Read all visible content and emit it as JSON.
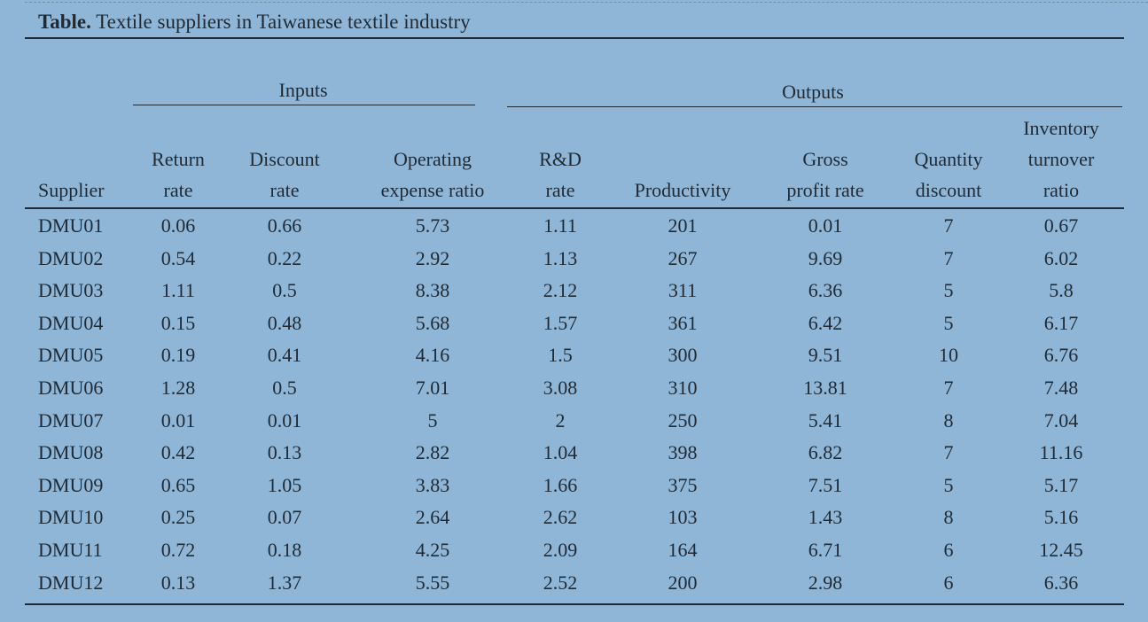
{
  "caption": {
    "label": "Table.",
    "title": "Textile suppliers in Taiwanese textile industry"
  },
  "groups": {
    "inputs": "Inputs",
    "outputs": "Outputs"
  },
  "headers": [
    [
      "Supplier"
    ],
    [
      "Return",
      "rate"
    ],
    [
      "Discount",
      "rate"
    ],
    [
      "Operating",
      "expense ratio"
    ],
    [
      "R&D",
      "rate"
    ],
    [
      "Productivity"
    ],
    [
      "Gross",
      "profit rate"
    ],
    [
      "Quantity",
      "discount"
    ],
    [
      "Inventory",
      "turnover",
      "ratio"
    ]
  ],
  "rows": [
    [
      "DMU01",
      "0.06",
      "0.66",
      "5.73",
      "1.11",
      "201",
      "0.01",
      "7",
      "0.67"
    ],
    [
      "DMU02",
      "0.54",
      "0.22",
      "2.92",
      "1.13",
      "267",
      "9.69",
      "7",
      "6.02"
    ],
    [
      "DMU03",
      "1.11",
      "0.5",
      "8.38",
      "2.12",
      "311",
      "6.36",
      "5",
      "5.8"
    ],
    [
      "DMU04",
      "0.15",
      "0.48",
      "5.68",
      "1.57",
      "361",
      "6.42",
      "5",
      "6.17"
    ],
    [
      "DMU05",
      "0.19",
      "0.41",
      "4.16",
      "1.5",
      "300",
      "9.51",
      "10",
      "6.76"
    ],
    [
      "DMU06",
      "1.28",
      "0.5",
      "7.01",
      "3.08",
      "310",
      "13.81",
      "7",
      "7.48"
    ],
    [
      "DMU07",
      "0.01",
      "0.01",
      "5",
      "2",
      "250",
      "5.41",
      "8",
      "7.04"
    ],
    [
      "DMU08",
      "0.42",
      "0.13",
      "2.82",
      "1.04",
      "398",
      "6.82",
      "7",
      "11.16"
    ],
    [
      "DMU09",
      "0.65",
      "1.05",
      "3.83",
      "1.66",
      "375",
      "7.51",
      "5",
      "5.17"
    ],
    [
      "DMU10",
      "0.25",
      "0.07",
      "2.64",
      "2.62",
      "103",
      "1.43",
      "8",
      "5.16"
    ],
    [
      "DMU11",
      "0.72",
      "0.18",
      "4.25",
      "2.09",
      "164",
      "6.71",
      "6",
      "12.45"
    ],
    [
      "DMU12",
      "0.13",
      "1.37",
      "5.55",
      "2.52",
      "200",
      "2.98",
      "6",
      "6.36"
    ]
  ]
}
